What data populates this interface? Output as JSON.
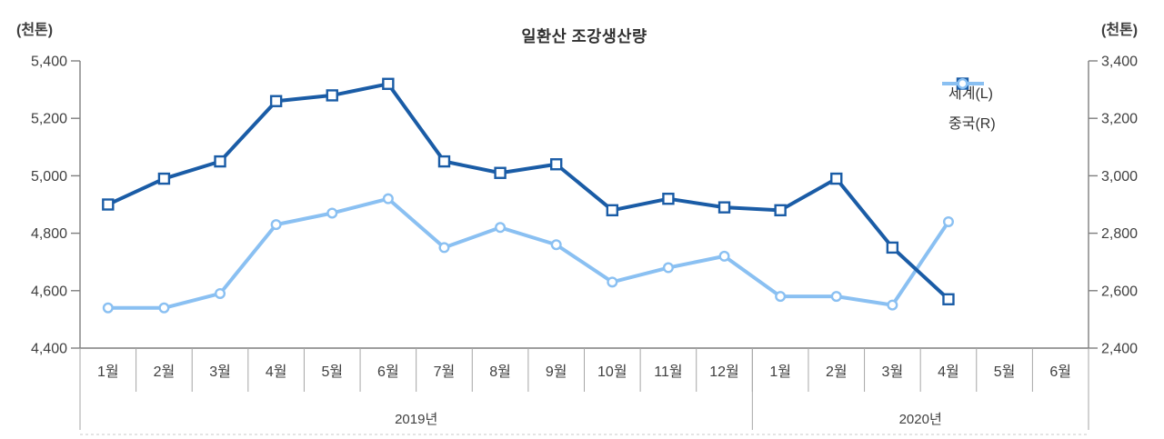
{
  "chart": {
    "title": "일환산 조강생산량",
    "left_axis": {
      "unit": "(천톤)",
      "min": 4400,
      "max": 5400,
      "ticks": [
        "5,400",
        "5,200",
        "5,000",
        "4,800",
        "4,600",
        "4,400"
      ]
    },
    "right_axis": {
      "unit": "(천톤)",
      "min": 2400,
      "max": 3400,
      "ticks": [
        "3,400",
        "3,200",
        "3,000",
        "2,800",
        "2,600",
        "2,400"
      ]
    },
    "colors": {
      "axis": "#7f7f7f",
      "grid": "#a6a6a6",
      "text": "#404040",
      "bottom_border": "#c9c9c9"
    },
    "series": [
      {
        "key": "world",
        "name": "세계(L)",
        "axis": "left",
        "color": "#1a5ca6",
        "marker": "square",
        "values": [
          4900,
          4990,
          5050,
          5260,
          5280,
          5320,
          5050,
          5010,
          5040,
          4880,
          4920,
          4890,
          4880,
          4990,
          4750,
          4570,
          null,
          null
        ]
      },
      {
        "key": "china",
        "name": "중국(R)",
        "axis": "right",
        "color": "#8ac0f2",
        "marker": "circle",
        "values": [
          2540,
          2540,
          2590,
          2830,
          2870,
          2920,
          2750,
          2820,
          2760,
          2630,
          2680,
          2720,
          2580,
          2580,
          2550,
          2840,
          null,
          null
        ]
      }
    ]
  },
  "chart_data": {
    "type": "line",
    "title": "일환산 조강생산량",
    "categories": [
      "1월",
      "2월",
      "3월",
      "4월",
      "5월",
      "6월",
      "7월",
      "8월",
      "9월",
      "10월",
      "11월",
      "12월",
      "1월",
      "2월",
      "3월",
      "4월",
      "5월",
      "6월"
    ],
    "groups": [
      {
        "label": "2019년",
        "span": 12
      },
      {
        "label": "2020년",
        "span": 6
      }
    ],
    "series": [
      {
        "name": "세계(L)",
        "axis": "left",
        "values": [
          4900,
          4990,
          5050,
          5260,
          5280,
          5320,
          5050,
          5010,
          5040,
          4880,
          4920,
          4890,
          4880,
          4990,
          4750,
          4570,
          null,
          null
        ]
      },
      {
        "name": "중국(R)",
        "axis": "right",
        "values": [
          2540,
          2540,
          2590,
          2830,
          2870,
          2920,
          2750,
          2820,
          2760,
          2630,
          2680,
          2720,
          2580,
          2580,
          2550,
          2840,
          null,
          null
        ]
      }
    ],
    "left_axis_label": "(천톤)",
    "right_axis_label": "(천톤)",
    "left_ylim": [
      4400,
      5400
    ],
    "right_ylim": [
      2400,
      3400
    ],
    "grid": false,
    "legend_position": "top-right"
  }
}
